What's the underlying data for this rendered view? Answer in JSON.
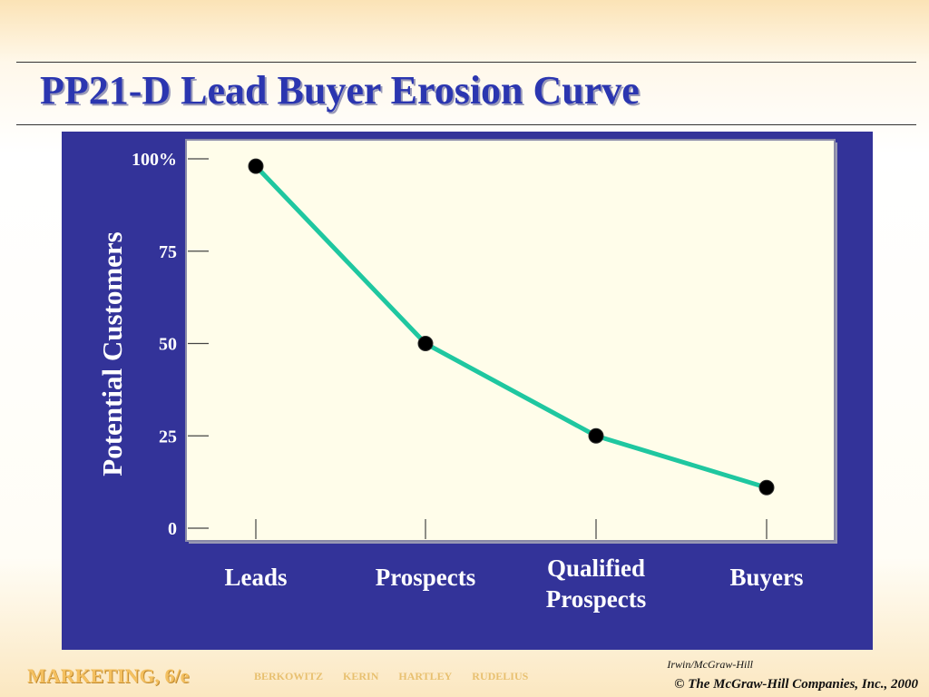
{
  "slide": {
    "title": "PP21-D  Lead Buyer Erosion Curve"
  },
  "chart_data": {
    "type": "line",
    "title": "",
    "ylabel": "Potential Customers",
    "xlabel": "",
    "categories": [
      "Leads",
      "Prospects",
      "Qualified Prospects",
      "Buyers"
    ],
    "series": [
      {
        "values": [
          98,
          50,
          25,
          11
        ]
      }
    ],
    "ylim": [
      0,
      100
    ],
    "y_tick_labels": [
      "0",
      "25",
      "50",
      "75",
      "100%"
    ],
    "y_tick_values": [
      0,
      25,
      50,
      75,
      100
    ],
    "grid": false,
    "legend": "none",
    "colors": {
      "panel": "#333399",
      "plot_bg": "#fffdea",
      "line": "#1fc7a0",
      "marker": "#000000"
    }
  },
  "footer": {
    "brand": "MARKETING, 6/e",
    "authors": [
      "BERKOWITZ",
      "KERIN",
      "HARTLEY",
      "RUDELIUS"
    ],
    "publisher": "Irwin/McGraw-Hill",
    "copyright": "© The McGraw-Hill Companies, Inc., 2000"
  }
}
